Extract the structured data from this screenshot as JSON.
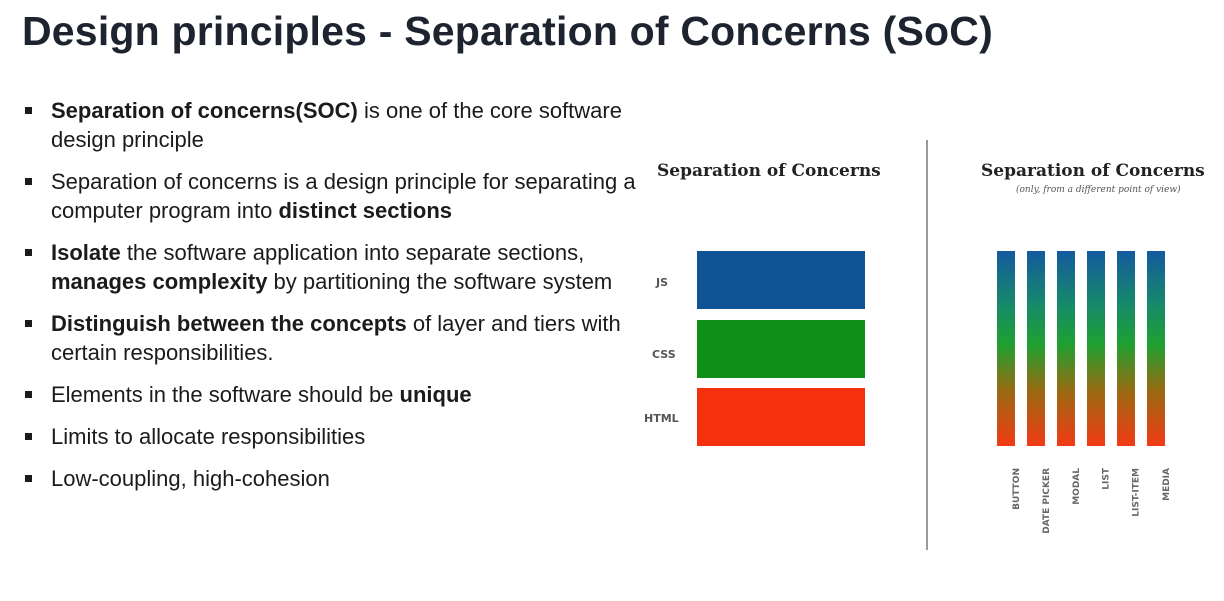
{
  "slide": {
    "title": "Design principles - Separation of Concerns (SoC)",
    "bullets": [
      {
        "segments": [
          {
            "text": "Separation of concerns(SOC)",
            "bold": true
          },
          {
            "text": " is one of the core software design principle",
            "bold": false
          }
        ]
      },
      {
        "segments": [
          {
            "text": "Separation of concerns is a design principle for separating a computer program into ",
            "bold": false
          },
          {
            "text": "distinct sections",
            "bold": true
          }
        ]
      },
      {
        "segments": [
          {
            "text": "Isolate",
            "bold": true
          },
          {
            "text": " the software application into separate sections, ",
            "bold": false
          },
          {
            "text": "manages complexity",
            "bold": true
          },
          {
            "text": " by partitioning the software system",
            "bold": false
          }
        ]
      },
      {
        "segments": [
          {
            "text": "Distinguish between the concepts",
            "bold": true
          },
          {
            "text": " of layer and tiers with certain responsibilities.",
            "bold": false
          }
        ]
      },
      {
        "segments": [
          {
            "text": "Elements in the software should be ",
            "bold": false
          },
          {
            "text": "unique",
            "bold": true
          }
        ]
      },
      {
        "segments": [
          {
            "text": "Limits to allocate responsibilities",
            "bold": false
          }
        ]
      },
      {
        "segments": [
          {
            "text": "Low-coupling, high-cohesion",
            "bold": false
          }
        ]
      }
    ]
  },
  "figure": {
    "left_panel": {
      "title": "Separation of Concerns",
      "layers": [
        {
          "label": "JS",
          "color": "#0f5596"
        },
        {
          "label": "CSS",
          "color": "#0f8f18"
        },
        {
          "label": "HTML",
          "color": "#f5300e"
        }
      ]
    },
    "right_panel": {
      "title": "Separation of Concerns",
      "subtitle": "(only, from a different point of view)",
      "columns": [
        "BUTTON",
        "DATE PICKER",
        "MODAL",
        "LIST",
        "LIST-ITEM",
        "MEDIA"
      ]
    }
  }
}
